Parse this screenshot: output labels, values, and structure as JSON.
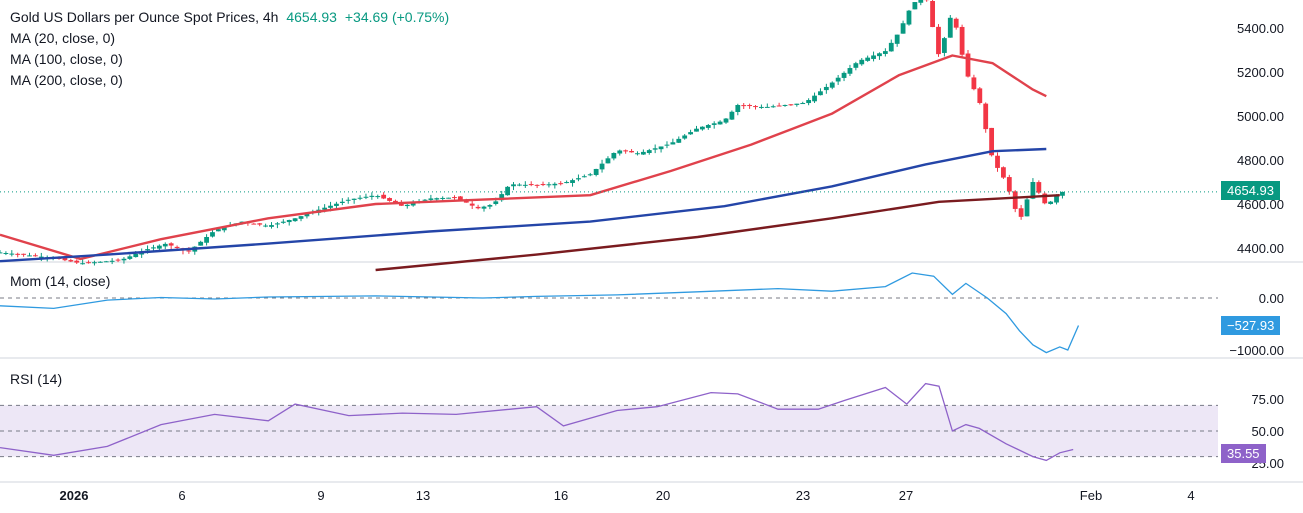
{
  "header": {
    "title": "Gold US Dollars per Ounce Spot Prices, 4h",
    "last": "4654.93",
    "change": "+34.69 (+0.75%)"
  },
  "indicators": {
    "ma20": "MA (20, close, 0)",
    "ma100": "MA (100, close, 0)",
    "ma200": "MA (200, close, 0)",
    "mom": "Mom (14, close)",
    "rsi": "RSI (14)"
  },
  "tags": {
    "price": "4654.93",
    "mom": "−527.93",
    "rsi": "35.55"
  },
  "colors": {
    "up": "#089981",
    "down": "#f23645",
    "ma20": "#e0424c",
    "ma100": "#2445a8",
    "ma200": "#7a1b1f",
    "mom": "#2f9ae0",
    "rsi": "#8e62c9",
    "rsiBand": "#ede7f6"
  },
  "chart_data": [
    {
      "type": "candlestick",
      "title": "Gold US Dollars per Ounce Spot Prices, 4h",
      "ylim": [
        4300,
        5500
      ],
      "y_ticks": [
        "4400.00",
        "4600.00",
        "4800.00",
        "5000.00",
        "5200.00",
        "5400.00"
      ],
      "x_ticks": [
        "2026",
        "6",
        "9",
        "13",
        "16",
        "20",
        "23",
        "27",
        "Feb",
        "4"
      ],
      "last_price": 4654.93,
      "close_path": [
        [
          0,
          4380
        ],
        [
          20,
          4355
        ],
        [
          30,
          4330
        ],
        [
          45,
          4345
        ],
        [
          55,
          4395
        ],
        [
          62,
          4420
        ],
        [
          70,
          4380
        ],
        [
          80,
          4480
        ],
        [
          90,
          4520
        ],
        [
          100,
          4500
        ],
        [
          110,
          4535
        ],
        [
          119,
          4575
        ],
        [
          130,
          4620
        ],
        [
          140,
          4640
        ],
        [
          150,
          4590
        ],
        [
          160,
          4625
        ],
        [
          170,
          4630
        ],
        [
          178,
          4580
        ],
        [
          184,
          4600
        ],
        [
          190,
          4690
        ],
        [
          200,
          4685
        ],
        [
          210,
          4695
        ],
        [
          220,
          4735
        ],
        [
          230,
          4845
        ],
        [
          238,
          4830
        ],
        [
          250,
          4875
        ],
        [
          260,
          4945
        ],
        [
          270,
          4980
        ],
        [
          275,
          5050
        ],
        [
          285,
          5040
        ],
        [
          300,
          5060
        ],
        [
          310,
          5150
        ],
        [
          320,
          5250
        ],
        [
          330,
          5295
        ],
        [
          335,
          5380
        ],
        [
          340,
          5510
        ],
        [
          345,
          5550
        ],
        [
          350,
          5270
        ],
        [
          355,
          5480
        ],
        [
          360,
          5200
        ],
        [
          365,
          5070
        ],
        [
          370,
          4800
        ],
        [
          375,
          4700
        ],
        [
          380,
          4520
        ],
        [
          385,
          4700
        ],
        [
          390,
          4590
        ],
        [
          395,
          4654.93
        ]
      ],
      "series": [
        {
          "name": "MA (20, close, 0)",
          "points": [
            [
              0,
              4460
            ],
            [
              30,
              4350
            ],
            [
              60,
              4440
            ],
            [
              100,
              4535
            ],
            [
              140,
              4600
            ],
            [
              180,
              4620
            ],
            [
              220,
              4640
            ],
            [
              250,
              4750
            ],
            [
              280,
              4870
            ],
            [
              310,
              5010
            ],
            [
              335,
              5185
            ],
            [
              355,
              5275
            ],
            [
              370,
              5240
            ],
            [
              385,
              5120
            ],
            [
              390,
              5090
            ]
          ]
        },
        {
          "name": "MA (100, close, 0)",
          "points": [
            [
              0,
              4340
            ],
            [
              40,
              4370
            ],
            [
              100,
              4420
            ],
            [
              160,
              4475
            ],
            [
              220,
              4520
            ],
            [
              270,
              4590
            ],
            [
              310,
              4680
            ],
            [
              345,
              4780
            ],
            [
              370,
              4840
            ],
            [
              390,
              4850
            ]
          ]
        },
        {
          "name": "MA (200, close, 0)",
          "points": [
            [
              140,
              4300
            ],
            [
              200,
              4370
            ],
            [
              260,
              4450
            ],
            [
              310,
              4535
            ],
            [
              350,
              4610
            ],
            [
              380,
              4630
            ],
            [
              395,
              4640
            ]
          ]
        }
      ]
    },
    {
      "type": "line",
      "title": "Mom (14, close)",
      "y_ticks": [
        "0.00",
        "−1000.00"
      ],
      "ylim": [
        -1100,
        550
      ],
      "last_value": -527.93,
      "series": [
        {
          "name": "Mom (14, close)",
          "points": [
            [
              0,
              -150
            ],
            [
              20,
              -200
            ],
            [
              40,
              -40
            ],
            [
              60,
              10
            ],
            [
              80,
              -20
            ],
            [
              100,
              20
            ],
            [
              140,
              40
            ],
            [
              180,
              0
            ],
            [
              200,
              30
            ],
            [
              230,
              60
            ],
            [
              260,
              120
            ],
            [
              290,
              180
            ],
            [
              310,
              130
            ],
            [
              330,
              220
            ],
            [
              340,
              480
            ],
            [
              348,
              420
            ],
            [
              355,
              70
            ],
            [
              360,
              280
            ],
            [
              368,
              0
            ],
            [
              375,
              -300
            ],
            [
              380,
              -630
            ],
            [
              385,
              -900
            ],
            [
              390,
              -1050
            ],
            [
              395,
              -940
            ],
            [
              398,
              -1000
            ],
            [
              402,
              -527.93
            ]
          ]
        }
      ]
    },
    {
      "type": "line",
      "title": "RSI (14)",
      "y_ticks": [
        "25.00",
        "50.00",
        "75.00"
      ],
      "ylim": [
        20,
        90
      ],
      "band": [
        30,
        70
      ],
      "last_value": 35.55,
      "series": [
        {
          "name": "RSI (14)",
          "points": [
            [
              0,
              37
            ],
            [
              20,
              31
            ],
            [
              40,
              38
            ],
            [
              60,
              55
            ],
            [
              80,
              63
            ],
            [
              100,
              58
            ],
            [
              110,
              71
            ],
            [
              130,
              62
            ],
            [
              150,
              64
            ],
            [
              170,
              63
            ],
            [
              200,
              69
            ],
            [
              210,
              54
            ],
            [
              230,
              66
            ],
            [
              245,
              69
            ],
            [
              265,
              80
            ],
            [
              275,
              79
            ],
            [
              290,
              67
            ],
            [
              305,
              67
            ],
            [
              315,
              74
            ],
            [
              330,
              84
            ],
            [
              338,
              71
            ],
            [
              345,
              87
            ],
            [
              350,
              85
            ],
            [
              355,
              50
            ],
            [
              360,
              55
            ],
            [
              365,
              52
            ],
            [
              375,
              40
            ],
            [
              385,
              30
            ],
            [
              390,
              27
            ],
            [
              395,
              33
            ],
            [
              400,
              35.55
            ]
          ]
        }
      ]
    }
  ]
}
